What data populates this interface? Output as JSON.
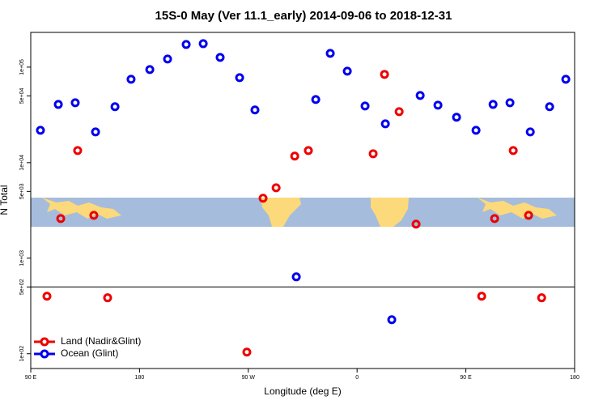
{
  "chart_data": {
    "type": "scatter",
    "title": "15S-0 May (Ver 11.1_early)   2014-09-06 to 2018-12-31",
    "xlabel": "Longitude (deg E)",
    "ylabel": "N Total",
    "xlim": [
      90,
      540
    ],
    "xticks": [
      {
        "value": 90,
        "label": "90 E"
      },
      180,
      {
        "value": 270,
        "label": "90 W"
      },
      {
        "value": 360,
        "label": "0"
      },
      {
        "value": 450,
        "label": "90 E"
      },
      {
        "value": 540,
        "label": "180"
      }
    ],
    "ylim": [
      70,
      231000
    ],
    "log_y": true,
    "yticks": [
      {
        "value": 100,
        "label": "1e+02"
      },
      {
        "value": 500,
        "label": "5e+02"
      },
      {
        "value": 1000,
        "label": "1e+03"
      },
      {
        "value": 5000,
        "label": "5e+03"
      },
      {
        "value": 10000,
        "label": "1e+04"
      },
      {
        "value": 50000,
        "label": "5e+04"
      },
      {
        "value": 100000,
        "label": "1e+05"
      }
    ],
    "reference_line": 500,
    "legend": "bottom-left",
    "series": [
      {
        "name": "Land (Nadir&Glint)",
        "color": "#ee0000",
        "x": [
          103.4,
          114.8,
          128.8,
          142.2,
          153.6,
          268.8,
          282.2,
          293,
          308.4,
          319.7,
          373.3,
          382.7,
          394.8,
          408.8,
          463.1,
          473.8,
          489.2,
          501.9,
          512.7
        ],
        "values": [
          400,
          2600,
          13400,
          2810,
          385,
          104,
          4240,
          5460,
          11700,
          13400,
          12400,
          84000,
          34200,
          2270,
          400,
          2600,
          13400,
          2810,
          385
        ]
      },
      {
        "name": "Ocean (Glint)",
        "color": "#0000ee",
        "x": [
          98,
          112.8,
          126.8,
          143.6,
          159.7,
          173,
          188.5,
          203.2,
          218.6,
          232.7,
          246.7,
          262.8,
          275.5,
          309.7,
          325.8,
          337.8,
          351.9,
          366.6,
          383.4,
          388.7,
          412.2,
          426.9,
          442.3,
          458.4,
          472.5,
          486.5,
          503.3,
          519.3,
          532.7
        ],
        "values": [
          21800,
          40700,
          42400,
          21000,
          38500,
          74700,
          94400,
          121700,
          172600,
          176000,
          126500,
          77600,
          35600,
          638,
          45800,
          139300,
          90800,
          39200,
          25500,
          227,
          50500,
          40000,
          29900,
          21800,
          40700,
          42400,
          21000,
          38500,
          74700
        ]
      }
    ]
  }
}
